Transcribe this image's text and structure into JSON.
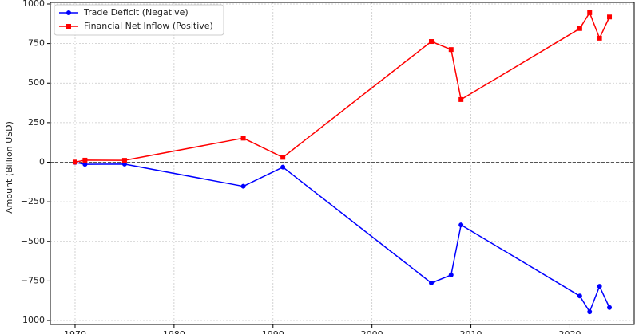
{
  "chart_data": {
    "type": "line",
    "title": "",
    "xlabel": "",
    "ylabel": "Amount (Billion USD)",
    "xlim": [
      1967.5,
      2026.5
    ],
    "ylim": [
      -1025,
      1010
    ],
    "x_ticks": [
      1970,
      1980,
      1990,
      2000,
      2010,
      2020
    ],
    "y_ticks": [
      -1000,
      -750,
      -500,
      -250,
      0,
      250,
      500,
      750,
      1000
    ],
    "y_tick_labels": [
      "−1000",
      "−750",
      "−500",
      "−250",
      "0",
      "250",
      "500",
      "750",
      "1000"
    ],
    "grid": true,
    "zero_line": true,
    "legend_position": "upper-left",
    "series": [
      {
        "name": "Trade Deficit (Negative)",
        "color": "#0000ff",
        "marker": "circle",
        "x": [
          1970,
          1971,
          1975,
          1987,
          1991,
          2006,
          2008,
          2009,
          2021,
          2022,
          2023,
          2024
        ],
        "y": [
          -1,
          -13,
          -12,
          -152,
          -31,
          -763,
          -712,
          -396,
          -845,
          -945,
          -784,
          -918
        ]
      },
      {
        "name": "Financial Net Inflow (Positive)",
        "color": "#ff0000",
        "marker": "square",
        "x": [
          1970,
          1971,
          1975,
          1987,
          1991,
          2006,
          2008,
          2009,
          2021,
          2022,
          2023,
          2024
        ],
        "y": [
          1,
          13,
          12,
          152,
          31,
          763,
          712,
          396,
          845,
          945,
          784,
          918
        ]
      }
    ]
  }
}
